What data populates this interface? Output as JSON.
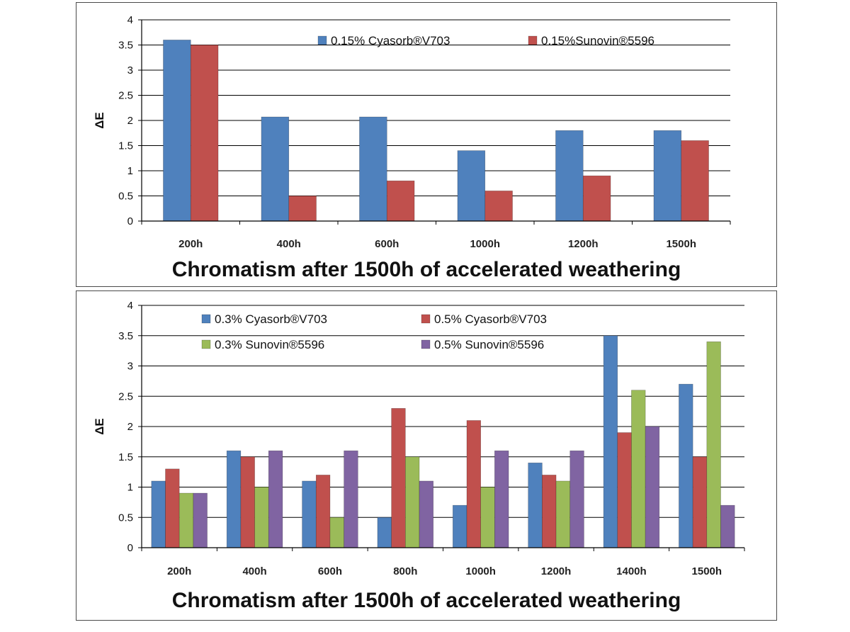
{
  "chart_data": [
    {
      "type": "bar",
      "title": "Chromatism  after 1500h of accelerated weathering",
      "ylabel": "ΔE",
      "xlabel": "",
      "ylim": [
        0,
        4
      ],
      "yticks": [
        "0",
        "0.5",
        "1",
        "1.5",
        "2",
        "2.5",
        "3",
        "3.5",
        "4"
      ],
      "grid": true,
      "legend_position": "top",
      "categories": [
        "200h",
        "400h",
        "600h",
        "1000h",
        "1200h",
        "1500h"
      ],
      "series": [
        {
          "name": "0.15% Cyasorb®V703",
          "color": "#4F81BD",
          "values": [
            3.6,
            2.07,
            2.07,
            1.4,
            1.8,
            1.8
          ]
        },
        {
          "name": "0.15%Sunovin®5596",
          "color": "#C0504D",
          "values": [
            3.5,
            0.5,
            0.8,
            0.6,
            0.9,
            1.6
          ]
        }
      ]
    },
    {
      "type": "bar",
      "title": "Chromatism  after 1500h of accelerated weathering",
      "ylabel": "ΔE",
      "xlabel": "",
      "ylim": [
        0,
        4
      ],
      "yticks": [
        "0",
        "0.5",
        "1",
        "1.5",
        "2",
        "2.5",
        "3",
        "3.5",
        "4"
      ],
      "grid": true,
      "legend_position": "top",
      "categories": [
        "200h",
        "400h",
        "600h",
        "800h",
        "1000h",
        "1200h",
        "1400h",
        "1500h"
      ],
      "series": [
        {
          "name": "0.3% Cyasorb®V703",
          "color": "#4F81BD",
          "values": [
            1.1,
            1.6,
            1.1,
            0.5,
            0.7,
            1.4,
            3.5,
            2.7
          ]
        },
        {
          "name": "0.5% Cyasorb®V703",
          "color": "#C0504D",
          "values": [
            1.3,
            1.5,
            1.2,
            2.3,
            2.1,
            1.2,
            1.9,
            1.5
          ]
        },
        {
          "name": "0.3% Sunovin®5596",
          "color": "#9BBB59",
          "values": [
            0.9,
            1.0,
            0.5,
            1.5,
            1.0,
            1.1,
            2.6,
            3.4
          ]
        },
        {
          "name": "0.5% Sunovin®5596",
          "color": "#8064A2",
          "values": [
            0.9,
            1.6,
            1.6,
            1.1,
            1.6,
            1.6,
            2.0,
            0.7
          ]
        }
      ]
    }
  ]
}
